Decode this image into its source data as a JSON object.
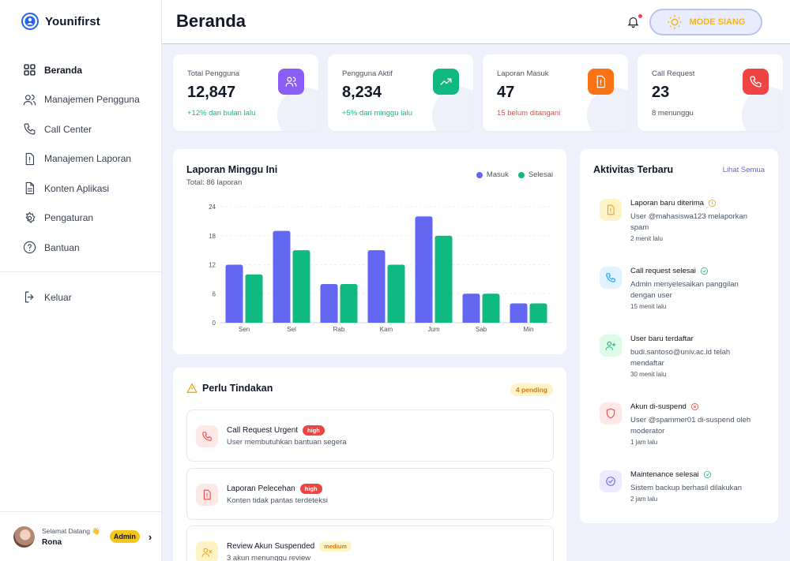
{
  "app": {
    "name": "Younifirst"
  },
  "sidebar": {
    "items": [
      {
        "label": "Beranda",
        "icon": "grid-icon"
      },
      {
        "label": "Manajemen Pengguna",
        "icon": "users-icon"
      },
      {
        "label": "Call Center",
        "icon": "phone-icon"
      },
      {
        "label": "Manajemen Laporan",
        "icon": "alert-file-icon"
      },
      {
        "label": "Konten Aplikasi",
        "icon": "document-icon"
      },
      {
        "label": "Pengaturan",
        "icon": "gear-icon"
      },
      {
        "label": "Bantuan",
        "icon": "help-icon"
      }
    ],
    "logout_label": "Keluar",
    "footer": {
      "welcome": "Selamat Datang 👋",
      "name": "Rona",
      "role": "Admin"
    }
  },
  "header": {
    "title": "Beranda",
    "mode_label": "MODE SIANG"
  },
  "stats": [
    {
      "label": "Total Pengguna",
      "value": "12,847",
      "sub": "+12% dari bulan lalu",
      "color": "#8b5cf6",
      "sub_color": "#10b981",
      "icon": "users-icon"
    },
    {
      "label": "Pengguna Aktif",
      "value": "8,234",
      "sub": "+5% dari minggu lalu",
      "color": "#10b981",
      "sub_color": "#10b981",
      "icon": "trending-up-icon"
    },
    {
      "label": "Laporan Masuk",
      "value": "47",
      "sub": "15 belum ditangani",
      "color": "#f97316",
      "sub_color": "#ef4444",
      "icon": "alert-file-icon"
    },
    {
      "label": "Call Request",
      "value": "23",
      "sub": "8 menunggu",
      "color": "#ef4444",
      "sub_color": "#4b5563",
      "icon": "phone-icon"
    }
  ],
  "chart_data": {
    "type": "bar",
    "title": "Laporan Minggu Ini",
    "subtitle": "Total: 86 laporan",
    "categories": [
      "Sen",
      "Sel",
      "Rab",
      "Kam",
      "Jum",
      "Sab",
      "Min"
    ],
    "series": [
      {
        "name": "Masuk",
        "color": "#6366f1",
        "values": [
          12,
          19,
          8,
          15,
          22,
          6,
          4
        ]
      },
      {
        "name": "Selesai",
        "color": "#10b981",
        "values": [
          10,
          15,
          8,
          12,
          18,
          6,
          4
        ]
      }
    ],
    "yticks": [
      "24",
      "18",
      "12",
      "6",
      "0"
    ],
    "ylim": [
      0,
      24
    ],
    "grid": true,
    "legend": "top-right"
  },
  "actions": {
    "title": "Perlu Tindakan",
    "pending": "4 pending",
    "items": [
      {
        "title": "Call Request Urgent",
        "priority": "high",
        "desc": "User membutuhkan bantuan segera",
        "icon": "phone-icon"
      },
      {
        "title": "Laporan Pelecehan",
        "priority": "high",
        "desc": "Konten tidak pantas terdeteksi",
        "icon": "alert-file-icon"
      },
      {
        "title": "Review Akun Suspended",
        "priority": "medium",
        "desc": "3 akun menunggu review",
        "icon": "user-x-icon"
      }
    ]
  },
  "activity": {
    "title": "Aktivitas Terbaru",
    "see_all": "Lihat Semua",
    "items": [
      {
        "title": "Laporan baru diterima",
        "desc": "User @mahasiswa123 melaporkan spam",
        "time": "2 menit lalu",
        "icon": "alert-file-icon",
        "status_icon": "clock-icon"
      },
      {
        "title": "Call request selesai",
        "desc": "Admin menyelesaikan panggilan dengan user",
        "time": "15 menit lalu",
        "icon": "phone-icon",
        "status_icon": "check-circle-icon"
      },
      {
        "title": "User baru terdaftar",
        "desc": "budi.santoso@univ.ac.id telah mendaftar",
        "time": "30 menit lalu",
        "icon": "user-plus-icon",
        "status_icon": ""
      },
      {
        "title": "Akun di-suspend",
        "desc": "User @spammer01 di-suspend oleh moderator",
        "time": "1 jam lalu",
        "icon": "shield-icon",
        "status_icon": "x-circle-icon"
      },
      {
        "title": "Maintenance selesai",
        "desc": "Sistem backup berhasil dilakukan",
        "time": "2 jam lalu",
        "icon": "check-circle-icon",
        "status_icon": "check-circle-icon"
      }
    ]
  }
}
